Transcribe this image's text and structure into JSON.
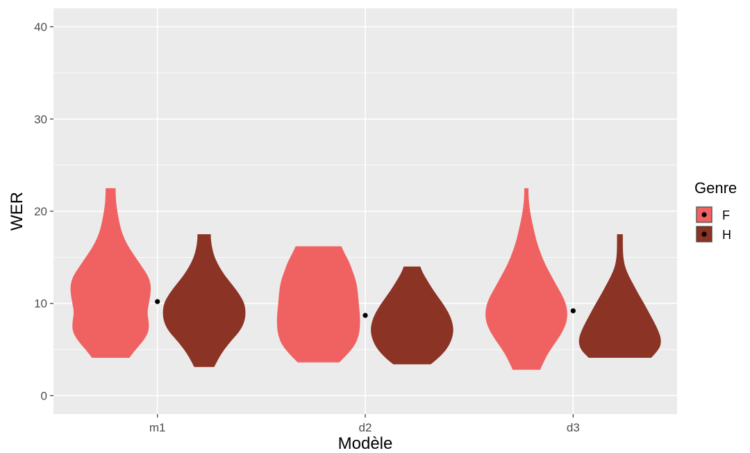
{
  "chart_data": {
    "type": "violin",
    "xlabel": "Modèle",
    "ylabel": "WER",
    "ylim": [
      -2,
      42
    ],
    "y_ticks": [
      0,
      10,
      20,
      30,
      40
    ],
    "categories": [
      "m1",
      "d2",
      "d3"
    ],
    "grid": true,
    "legend": {
      "title": "Genre",
      "position": "right",
      "entries": [
        {
          "label": "F",
          "color": "#f06262"
        },
        {
          "label": "H",
          "color": "#8b3324"
        }
      ]
    },
    "series": [
      {
        "name": "F",
        "color": "#f06262",
        "violins": [
          {
            "category": "m1",
            "min": 4.1,
            "max": 22.5,
            "profile": [
              [
                4.1,
                0.45
              ],
              [
                5,
                0.6
              ],
              [
                6,
                0.8
              ],
              [
                7,
                0.92
              ],
              [
                8,
                0.92
              ],
              [
                9,
                0.88
              ],
              [
                10,
                0.92
              ],
              [
                11,
                0.96
              ],
              [
                12,
                0.97
              ],
              [
                13,
                0.9
              ],
              [
                14,
                0.75
              ],
              [
                15,
                0.6
              ],
              [
                16,
                0.45
              ],
              [
                17,
                0.33
              ],
              [
                18,
                0.25
              ],
              [
                19,
                0.2
              ],
              [
                20,
                0.16
              ],
              [
                21,
                0.13
              ],
              [
                22,
                0.12
              ],
              [
                22.5,
                0.12
              ]
            ]
          },
          {
            "category": "d2",
            "min": 3.6,
            "max": 16.2,
            "profile": [
              [
                3.6,
                0.5
              ],
              [
                4.5,
                0.7
              ],
              [
                5.5,
                0.88
              ],
              [
                6.5,
                0.97
              ],
              [
                7.5,
                1.0
              ],
              [
                8.5,
                1.0
              ],
              [
                9.5,
                0.98
              ],
              [
                10.5,
                0.96
              ],
              [
                11.5,
                0.94
              ],
              [
                12.5,
                0.9
              ],
              [
                13.5,
                0.82
              ],
              [
                14.5,
                0.74
              ],
              [
                15.5,
                0.62
              ],
              [
                16.2,
                0.55
              ]
            ]
          },
          {
            "category": "d3",
            "min": 2.8,
            "max": 22.5,
            "profile": [
              [
                2.8,
                0.33
              ],
              [
                4,
                0.45
              ],
              [
                5,
                0.58
              ],
              [
                6,
                0.74
              ],
              [
                7,
                0.88
              ],
              [
                8,
                0.97
              ],
              [
                9,
                0.99
              ],
              [
                10,
                0.95
              ],
              [
                11,
                0.85
              ],
              [
                12,
                0.72
              ],
              [
                13,
                0.6
              ],
              [
                14,
                0.48
              ],
              [
                15,
                0.38
              ],
              [
                16,
                0.3
              ],
              [
                17,
                0.23
              ],
              [
                18,
                0.18
              ],
              [
                19,
                0.13
              ],
              [
                20,
                0.09
              ],
              [
                21,
                0.06
              ],
              [
                22,
                0.05
              ],
              [
                22.5,
                0.05
              ]
            ]
          }
        ]
      },
      {
        "name": "H",
        "color": "#8b3324",
        "violins": [
          {
            "category": "m1",
            "min": 3.1,
            "max": 17.5,
            "profile": [
              [
                3.1,
                0.24
              ],
              [
                4,
                0.34
              ],
              [
                5,
                0.48
              ],
              [
                6,
                0.66
              ],
              [
                7,
                0.86
              ],
              [
                8,
                0.97
              ],
              [
                9,
                1.0
              ],
              [
                10,
                0.97
              ],
              [
                11,
                0.85
              ],
              [
                12,
                0.68
              ],
              [
                13,
                0.5
              ],
              [
                14,
                0.36
              ],
              [
                15,
                0.25
              ],
              [
                16,
                0.19
              ],
              [
                17,
                0.16
              ],
              [
                17.5,
                0.16
              ]
            ]
          },
          {
            "category": "d2",
            "min": 3.4,
            "max": 14.0,
            "profile": [
              [
                3.4,
                0.45
              ],
              [
                4,
                0.62
              ],
              [
                5,
                0.83
              ],
              [
                6,
                0.95
              ],
              [
                7,
                1.0
              ],
              [
                8,
                0.97
              ],
              [
                9,
                0.88
              ],
              [
                10,
                0.74
              ],
              [
                11,
                0.58
              ],
              [
                12,
                0.43
              ],
              [
                13,
                0.3
              ],
              [
                13.5,
                0.24
              ],
              [
                14,
                0.2
              ]
            ]
          },
          {
            "category": "d3",
            "min": 4.1,
            "max": 17.5,
            "profile": [
              [
                4.1,
                0.75
              ],
              [
                5,
                0.95
              ],
              [
                6,
                1.0
              ],
              [
                7,
                0.93
              ],
              [
                8,
                0.82
              ],
              [
                9,
                0.7
              ],
              [
                10,
                0.58
              ],
              [
                11,
                0.45
              ],
              [
                12,
                0.33
              ],
              [
                13,
                0.21
              ],
              [
                14,
                0.12
              ],
              [
                15,
                0.08
              ],
              [
                16,
                0.07
              ],
              [
                17,
                0.07
              ],
              [
                17.5,
                0.07
              ]
            ]
          }
        ]
      }
    ],
    "points": [
      {
        "category": "m1",
        "value": 10.2
      },
      {
        "category": "d2",
        "value": 8.7
      },
      {
        "category": "d3",
        "value": 9.2
      }
    ]
  }
}
